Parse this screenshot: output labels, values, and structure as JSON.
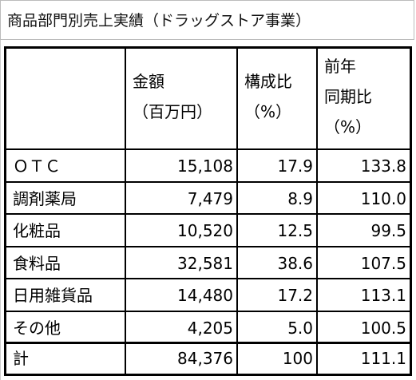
{
  "title": "商品部門別売上実績（ドラッグストア事業）",
  "table": {
    "header": [
      [],
      [
        "金額",
        "（百万円）"
      ],
      [
        "構成比",
        "（%）"
      ],
      [
        "前年",
        "同期比",
        "（%）"
      ]
    ],
    "rows": [
      [
        "ＯＴＣ",
        "15,108",
        "17.9",
        "133.8"
      ],
      [
        "調剤薬局",
        "7,479",
        "8.9",
        "110.0"
      ],
      [
        "化粧品",
        "10,520",
        "12.5",
        "99.5"
      ],
      [
        "食料品",
        "32,581",
        "38.6",
        "107.5"
      ],
      [
        "日用雑貨品",
        "14,480",
        "17.2",
        "113.1"
      ],
      [
        "その他",
        "4,205",
        "5.0",
        "100.5"
      ]
    ],
    "total": [
      "計",
      "84,376",
      "100",
      "111.1"
    ]
  }
}
